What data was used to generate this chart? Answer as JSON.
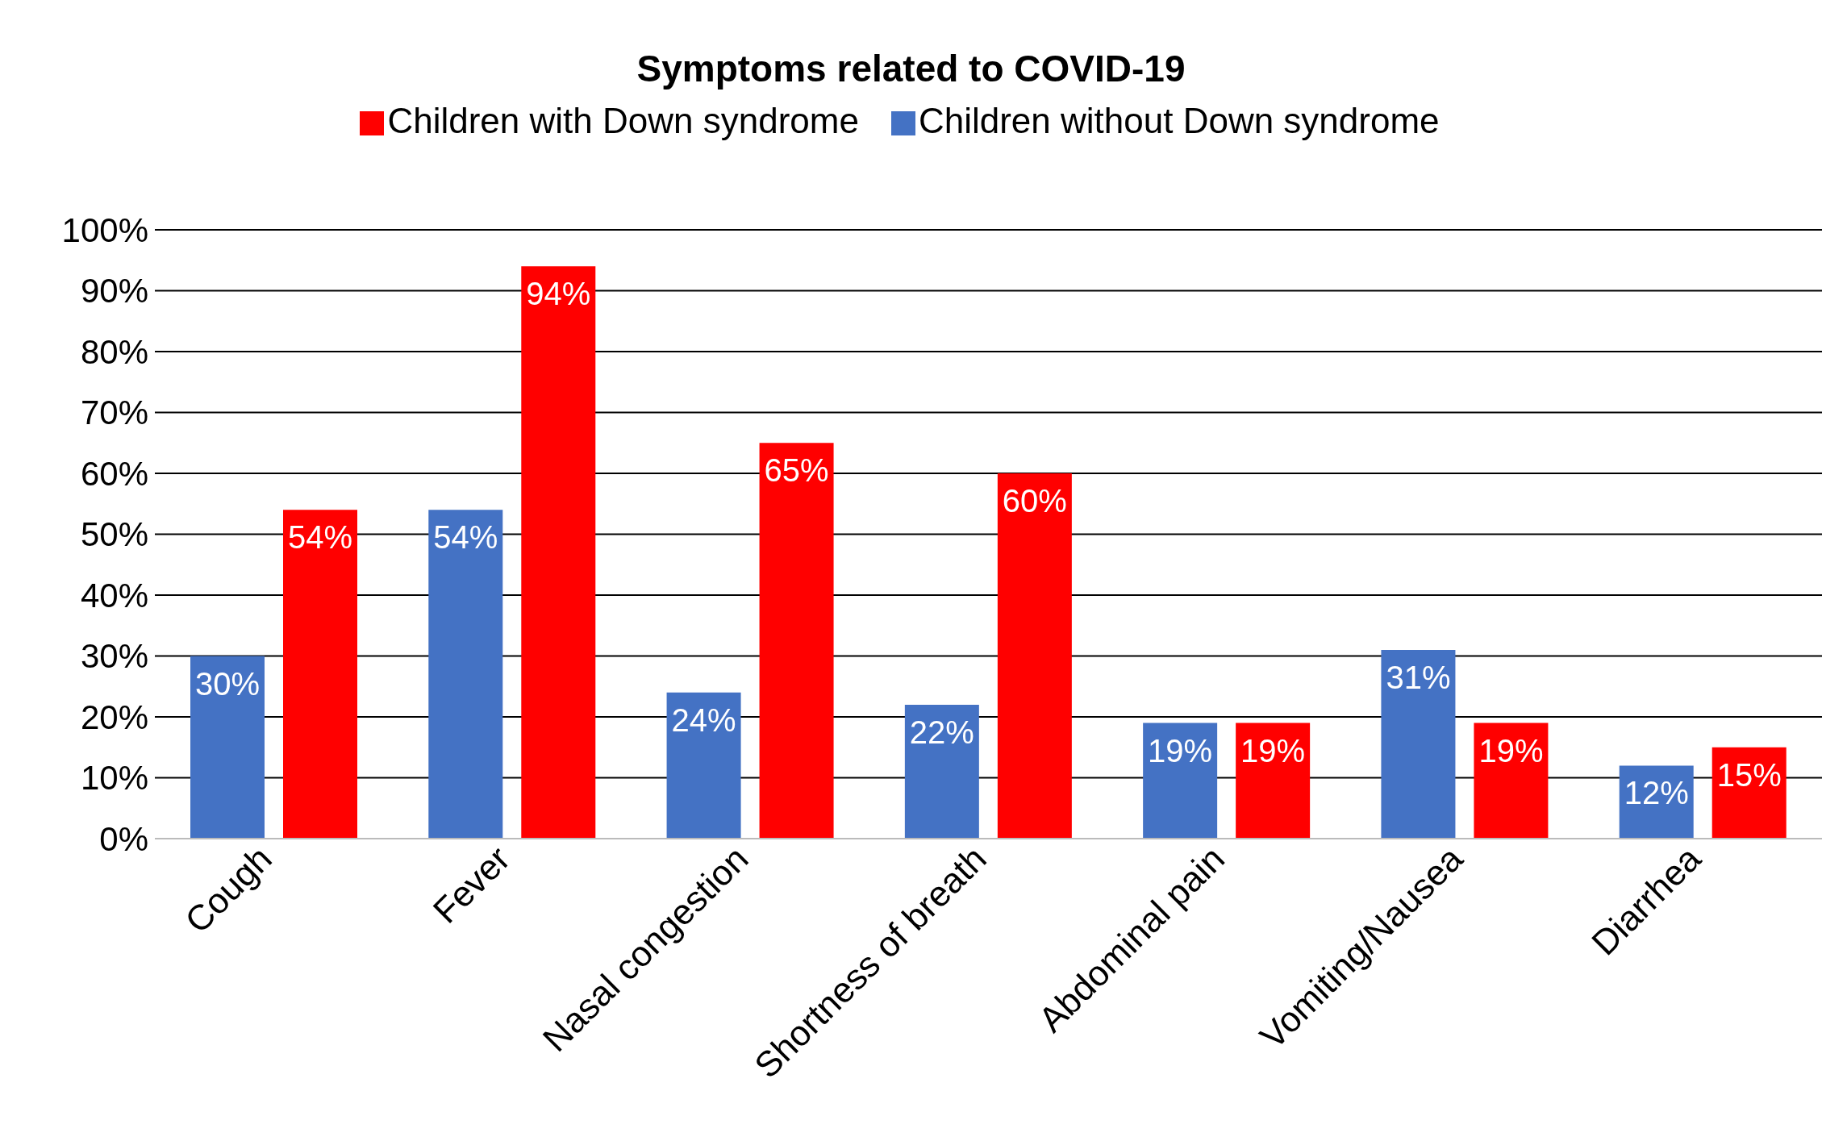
{
  "chart_data": {
    "type": "bar",
    "title": "Symptoms related to COVID-19",
    "categories": [
      "Cough",
      "Fever",
      "Nasal congestion",
      "Shortness of breath",
      "Abdominal pain",
      "Vomiting/Nausea",
      "Diarrhea"
    ],
    "series": [
      {
        "name": "Children without Down syndrome",
        "color": "#4472c4",
        "values": [
          30,
          54,
          24,
          22,
          19,
          31,
          12
        ],
        "value_labels": [
          "30%",
          "54%",
          "24%",
          "22%",
          "19%",
          "31%",
          "12%"
        ]
      },
      {
        "name": "Children with Down syndrome",
        "color": "#ff0000",
        "values": [
          54,
          94,
          65,
          60,
          19,
          19,
          15
        ],
        "value_labels": [
          "54%",
          "94%",
          "65%",
          "60%",
          "19%",
          "19%",
          "15%"
        ]
      }
    ],
    "ylim": [
      0,
      100
    ],
    "yticks": [
      {
        "value": 0,
        "label": "0%"
      },
      {
        "value": 10,
        "label": "10%"
      },
      {
        "value": 20,
        "label": "20%"
      },
      {
        "value": 30,
        "label": "30%"
      },
      {
        "value": 40,
        "label": "40%"
      },
      {
        "value": 50,
        "label": "50%"
      },
      {
        "value": 60,
        "label": "60%"
      },
      {
        "value": 70,
        "label": "70%"
      },
      {
        "value": 80,
        "label": "80%"
      },
      {
        "value": 90,
        "label": "90%"
      },
      {
        "value": 100,
        "label": "100%"
      }
    ],
    "grid": "y",
    "legend": "top"
  }
}
